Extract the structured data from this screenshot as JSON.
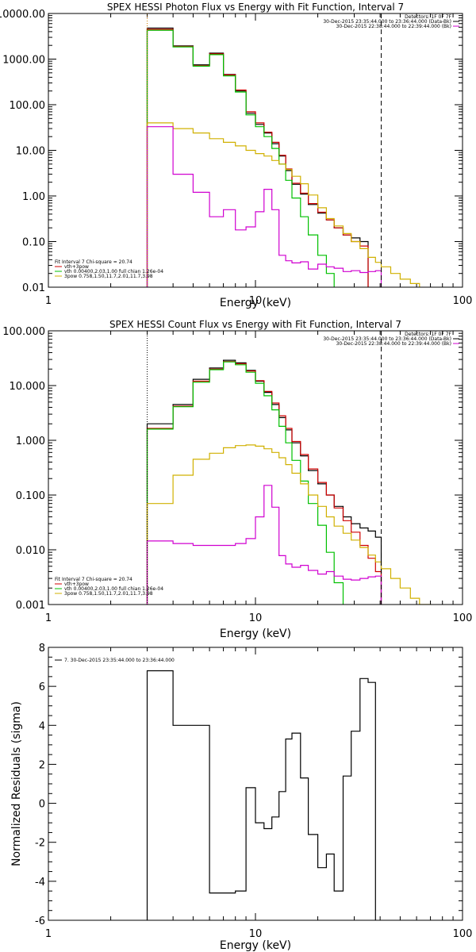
{
  "chart_data": [
    {
      "type": "line",
      "title": "SPEX HESSI Photon Flux vs Energy with Fit Function, Interval 7",
      "xlabel": "Energy (keV)",
      "ylabel": "",
      "xscale": "log",
      "yscale": "log",
      "xlim": [
        1,
        100
      ],
      "ylim": [
        0.01,
        10000
      ],
      "x_tick_labels": [
        "1",
        "10",
        "100"
      ],
      "y_tick_labels": [
        "0.01",
        "0.10",
        "1.00",
        "10.00",
        "100.00",
        "1000.00",
        "10000.00"
      ],
      "y_tick_values": [
        0.01,
        0.1,
        1,
        10,
        100,
        1000,
        10000
      ],
      "vlines": [
        {
          "x": 3.0,
          "style": "dotted",
          "color": "#d08000"
        },
        {
          "x": 40.5,
          "style": "dashed",
          "color": "#000000"
        }
      ],
      "header_lines": [
        {
          "text": "Detectors: 1F 0F 7F",
          "color": ""
        },
        {
          "text": "30-Dec-2015 23:35:44.000 to 23:36:44.000 (Data-Bk)",
          "color": "#000000"
        },
        {
          "text": "30-Dec-2015 22:38:44.000 to 22:39:44.000 (Bk)",
          "color": "#d000d0"
        }
      ],
      "legend": [
        {
          "text": "Fit Interval  7    Chi-square = 20.74",
          "color": ""
        },
        {
          "text": "vth+3pow",
          "color": "#d00000"
        },
        {
          "text": "vth 0.00400,2.03,1.00  full chian 1.26e-04",
          "color": "#00c000"
        },
        {
          "text": "3pow 0.758,1.50,11.7,2.01,11.7,3.98",
          "color": "#d0b000"
        }
      ],
      "bin_edges": [
        3.0,
        3.5,
        4.0,
        5.0,
        6.0,
        7.0,
        8.0,
        9.0,
        10.0,
        11.0,
        12.0,
        13.0,
        14.0,
        15.0,
        16.5,
        18.0,
        20.0,
        22.0,
        24.0,
        26.5,
        29.0,
        32.0,
        35.0,
        38.0,
        40.5,
        45.0,
        50.0,
        56.0,
        62.0,
        70.0
      ],
      "series": [
        {
          "name": "",
          "color": "#000000",
          "values": [
            4800,
            4800,
            1950,
            750,
            1350,
            460,
            200,
            65,
            37,
            24,
            14,
            7.5,
            3.6,
            1.8,
            1.1,
            0.65,
            0.42,
            0.3,
            0.2,
            0.14,
            0.12,
            0.1
          ]
        },
        {
          "name": "",
          "color": "#d00000",
          "values": [
            4500,
            4500,
            1900,
            720,
            1300,
            450,
            210,
            70,
            40,
            25,
            15,
            7.8,
            3.9,
            1.9,
            1.15,
            0.68,
            0.44,
            0.3,
            0.2,
            0.14,
            0.1,
            0.08
          ]
        },
        {
          "name": "",
          "color": "#00c000",
          "values": [
            4300,
            4300,
            1850,
            700,
            1250,
            430,
            190,
            60,
            33,
            20,
            11,
            5.0,
            2.2,
            0.9,
            0.35,
            0.14,
            0.05,
            0.02,
            0.009
          ]
        },
        {
          "name": "",
          "color": "#d0b000",
          "values": [
            40,
            40,
            30,
            24,
            18,
            15,
            12.5,
            10,
            8.5,
            7.5,
            6.0,
            5.0,
            3.8,
            2.7,
            1.85,
            1.05,
            0.55,
            0.32,
            0.22,
            0.15,
            0.1,
            0.07,
            0.045,
            0.035,
            0.028,
            0.02,
            0.015,
            0.012,
            0.009
          ]
        },
        {
          "name": "",
          "color": "#d000d0",
          "values": [
            33,
            33,
            3.0,
            1.2,
            0.35,
            0.5,
            0.18,
            0.21,
            0.45,
            1.4,
            0.5,
            0.05,
            0.038,
            0.034,
            0.036,
            0.025,
            0.032,
            0.028,
            0.026,
            0.022,
            0.023,
            0.021,
            0.022,
            0.023
          ]
        }
      ]
    },
    {
      "type": "line",
      "title": "SPEX HESSI Count Flux vs Energy with Fit Function, Interval 7",
      "xlabel": "Energy (keV)",
      "ylabel": "",
      "xscale": "log",
      "yscale": "log",
      "xlim": [
        1,
        100
      ],
      "ylim": [
        0.001,
        100
      ],
      "x_tick_labels": [
        "1",
        "10",
        "100"
      ],
      "y_tick_labels": [
        "0.001",
        "0.010",
        "0.100",
        "1.000",
        "10.000",
        "100.000"
      ],
      "y_tick_values": [
        0.001,
        0.01,
        0.1,
        1,
        10,
        100
      ],
      "vlines": [
        {
          "x": 3.0,
          "style": "dotted",
          "color": "#000000"
        },
        {
          "x": 40.5,
          "style": "dashed",
          "color": "#000000"
        }
      ],
      "header_lines": [
        {
          "text": "Detectors: 1F 0F 7F",
          "color": ""
        },
        {
          "text": "30-Dec-2015 23:35:44.000 to 23:36:44.000 (Data-Bk)",
          "color": "#000000"
        },
        {
          "text": "30-Dec-2015 22:38:44.000 to 22:39:44.000 (Bk)",
          "color": "#d000d0"
        }
      ],
      "legend": [
        {
          "text": "Fit Interval  7    Chi-square = 20.74",
          "color": ""
        },
        {
          "text": "vth+3pow",
          "color": "#d00000"
        },
        {
          "text": "vth 0.00400,2.03,1.00  full chian 1.26e-04",
          "color": "#00c000"
        },
        {
          "text": "3pow 0.758,1.50,11.7,2.01,11.7,3.98",
          "color": "#d0b000"
        }
      ],
      "bin_edges": [
        3.0,
        3.5,
        4.0,
        5.0,
        6.0,
        7.0,
        8.0,
        9.0,
        10.0,
        11.0,
        12.0,
        13.0,
        14.0,
        15.0,
        16.5,
        18.0,
        20.0,
        22.0,
        24.0,
        26.5,
        29.0,
        32.0,
        35.0,
        38.0,
        40.5,
        45.0,
        50.0,
        56.0,
        62.0,
        70.0
      ],
      "series": [
        {
          "name": "",
          "color": "#000000",
          "values": [
            2.0,
            2.0,
            4.5,
            13,
            21,
            29,
            26,
            19,
            12,
            7.5,
            4.5,
            2.6,
            1.55,
            0.9,
            0.52,
            0.28,
            0.16,
            0.1,
            0.062,
            0.04,
            0.03,
            0.025,
            0.022,
            0.017
          ]
        },
        {
          "name": "",
          "color": "#d00000",
          "values": [
            1.65,
            1.65,
            4.2,
            12,
            20,
            27.5,
            25,
            18.5,
            12.3,
            7.8,
            4.8,
            2.8,
            1.65,
            0.95,
            0.55,
            0.3,
            0.17,
            0.1,
            0.058,
            0.034,
            0.021,
            0.012,
            0.007,
            0.004
          ]
        },
        {
          "name": "",
          "color": "#00c000",
          "values": [
            1.6,
            1.6,
            4.1,
            11.5,
            19.5,
            27,
            24,
            17.5,
            11,
            6.5,
            3.6,
            1.8,
            0.9,
            0.43,
            0.18,
            0.07,
            0.028,
            0.009,
            0.0025,
            0.0008
          ]
        },
        {
          "name": "",
          "color": "#d0b000",
          "values": [
            0.07,
            0.07,
            0.23,
            0.45,
            0.58,
            0.73,
            0.8,
            0.82,
            0.78,
            0.7,
            0.6,
            0.48,
            0.36,
            0.25,
            0.16,
            0.1,
            0.062,
            0.04,
            0.027,
            0.02,
            0.015,
            0.011,
            0.008,
            0.006,
            0.0045,
            0.003,
            0.002,
            0.0013,
            0.001
          ]
        },
        {
          "name": "",
          "color": "#d000d0",
          "values": [
            0.0145,
            0.0145,
            0.013,
            0.012,
            0.012,
            0.012,
            0.013,
            0.016,
            0.04,
            0.15,
            0.06,
            0.0078,
            0.0055,
            0.0048,
            0.0052,
            0.0042,
            0.0036,
            0.004,
            0.0033,
            0.0029,
            0.0028,
            0.003,
            0.0032,
            0.0033
          ]
        }
      ]
    },
    {
      "type": "line",
      "title": "",
      "xlabel": "Energy (keV)",
      "ylabel": "Normalized Residuals (sigma)",
      "xscale": "log",
      "yscale": "linear",
      "xlim": [
        1,
        100
      ],
      "ylim": [
        -6,
        8
      ],
      "x_tick_labels": [
        "1",
        "10",
        "100"
      ],
      "y_tick_labels": [
        "-6",
        "-4",
        "-2",
        "0",
        "2",
        "4",
        "6",
        "8"
      ],
      "y_tick_values": [
        -6,
        -4,
        -2,
        0,
        2,
        4,
        6,
        8
      ],
      "vlines": [],
      "header_lines": [],
      "legend": [
        {
          "text": "7. 30-Dec-2015 23:35:44.000 to 23:36:44.000",
          "color": "#000000"
        }
      ],
      "bin_edges": [
        3.0,
        3.5,
        4.0,
        5.0,
        6.0,
        7.0,
        8.0,
        9.0,
        10.0,
        11.0,
        12.0,
        13.0,
        14.0,
        15.0,
        16.5,
        18.0,
        20.0,
        22.0,
        24.0,
        26.5,
        29.0,
        32.0,
        35.0,
        38.0,
        40.5
      ],
      "series": [
        {
          "name": "",
          "color": "#000000",
          "values": [
            6.8,
            6.8,
            4.0,
            4.0,
            -4.6,
            -4.6,
            -4.5,
            0.8,
            -1.0,
            -1.3,
            -0.7,
            0.6,
            3.3,
            3.6,
            1.3,
            -1.6,
            -3.3,
            -2.6,
            -4.5,
            1.4,
            3.7,
            6.4,
            6.2
          ]
        }
      ]
    }
  ]
}
